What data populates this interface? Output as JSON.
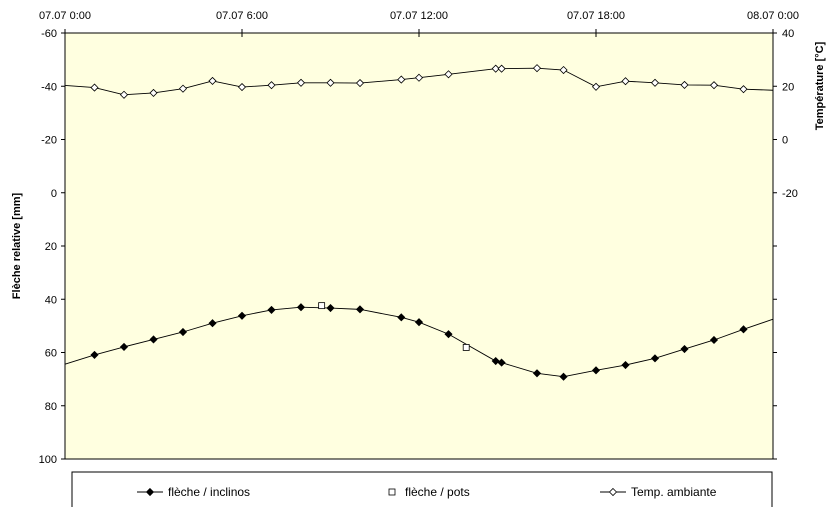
{
  "chart_data": {
    "type": "line",
    "x_axis": {
      "unit": "hours",
      "range": [
        0,
        24
      ],
      "tick_values": [
        0,
        6,
        12,
        18,
        24
      ],
      "tick_labels": [
        "07.07 0:00",
        "07.07 6:00",
        "07.07 12:00",
        "07.07 18:00",
        "08.07 0:00"
      ],
      "position": "top"
    },
    "y_left": {
      "title": "Flèche relative [mm]",
      "range": [
        -60,
        100
      ],
      "inverted": true,
      "tick_values": [
        -60,
        -40,
        -20,
        0,
        20,
        40,
        60,
        80,
        100
      ],
      "tick_labels": [
        "-60",
        "-40",
        "-20",
        "0",
        "20",
        "40",
        "60",
        "80",
        "100"
      ]
    },
    "y_right": {
      "title": "Température [°C]",
      "range": [
        40,
        -120
      ],
      "tick_values": [
        40,
        20,
        0,
        -20
      ],
      "tick_labels": [
        "40",
        "20",
        "0",
        "-20"
      ]
    },
    "grid": false,
    "plot_background": "#ffffe0",
    "legend": {
      "placement": "bottom",
      "entries": [
        {
          "label": "flèche / inclinos",
          "marker": "filled-diamond"
        },
        {
          "label": "flèche / pots",
          "marker": "open-square"
        },
        {
          "label": "Temp. ambiante",
          "marker": "open-diamond"
        }
      ]
    },
    "series": [
      {
        "key": "inclinos",
        "axis": "left",
        "marker": "filled-diamond",
        "color": "#000000",
        "points": [
          [
            0,
            64.4
          ],
          [
            1,
            60.9
          ],
          [
            2,
            57.9
          ],
          [
            3,
            55.1
          ],
          [
            4,
            52.3
          ],
          [
            5,
            49.0
          ],
          [
            6,
            46.2
          ],
          [
            7,
            44.0
          ],
          [
            8,
            43.0
          ],
          [
            9,
            43.3
          ],
          [
            10,
            43.8
          ],
          [
            11.4,
            46.8
          ],
          [
            12,
            48.6
          ],
          [
            13,
            53.1
          ],
          [
            14.6,
            63.2
          ],
          [
            14.8,
            63.8
          ],
          [
            16,
            67.8
          ],
          [
            16.9,
            69.1
          ],
          [
            18,
            66.7
          ],
          [
            19,
            64.7
          ],
          [
            20,
            62.2
          ],
          [
            21,
            58.7
          ],
          [
            22,
            55.3
          ],
          [
            23,
            51.3
          ],
          [
            24,
            47.5
          ]
        ]
      },
      {
        "key": "pots",
        "axis": "left",
        "marker": "open-square",
        "color": "#000000",
        "points": [
          [
            8.7,
            42.4
          ],
          [
            13.6,
            58.1
          ]
        ]
      },
      {
        "key": "temperature",
        "axis": "right",
        "marker": "open-diamond",
        "color": "#000000",
        "points": [
          [
            0,
            20.3
          ],
          [
            1,
            19.5
          ],
          [
            2,
            16.8
          ],
          [
            3,
            17.5
          ],
          [
            4,
            19.1
          ],
          [
            5,
            22.0
          ],
          [
            6,
            19.7
          ],
          [
            7,
            20.4
          ],
          [
            8,
            21.3
          ],
          [
            9,
            21.3
          ],
          [
            10,
            21.2
          ],
          [
            11.4,
            22.5
          ],
          [
            12,
            23.2
          ],
          [
            13,
            24.5
          ],
          [
            14.6,
            26.6
          ],
          [
            14.8,
            26.6
          ],
          [
            16,
            26.8
          ],
          [
            16.9,
            26.1
          ],
          [
            18,
            19.8
          ],
          [
            19,
            21.9
          ],
          [
            20,
            21.3
          ],
          [
            21,
            20.5
          ],
          [
            22,
            20.4
          ],
          [
            23,
            18.9
          ],
          [
            24,
            18.5
          ]
        ]
      }
    ]
  }
}
